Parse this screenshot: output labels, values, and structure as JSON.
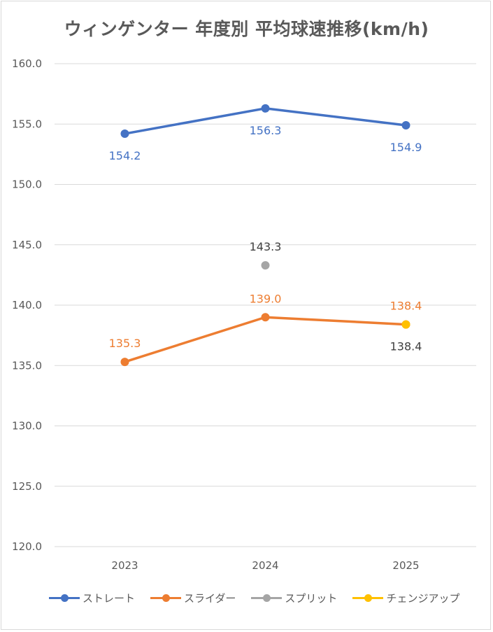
{
  "chart_data": {
    "type": "line",
    "title": "ウィンゲンター 年度別 平均球速推移(km/h)",
    "categories": [
      "2023",
      "2024",
      "2025"
    ],
    "ylim": [
      120,
      160
    ],
    "yticks": [
      "120.0",
      "125.0",
      "130.0",
      "135.0",
      "140.0",
      "145.0",
      "150.0",
      "155.0",
      "160.0"
    ],
    "ytick_values": [
      120,
      125,
      130,
      135,
      140,
      145,
      150,
      155,
      160
    ],
    "grid": true,
    "legend_position": "bottom",
    "series": [
      {
        "name": "ストレート",
        "color": "#4472C4",
        "values": [
          154.2,
          156.3,
          154.9
        ],
        "labels": [
          "154.2",
          "156.3",
          "154.9"
        ],
        "label_pos": "below"
      },
      {
        "name": "スライダー",
        "color": "#ED7D31",
        "values": [
          135.3,
          139.0,
          138.4
        ],
        "labels": [
          "135.3",
          "139.0",
          "138.4"
        ],
        "label_pos": "above"
      },
      {
        "name": "スプリット",
        "color": "#A5A5A5",
        "values": [
          null,
          143.3,
          null
        ],
        "labels": [
          null,
          "143.3",
          null
        ],
        "label_pos": "above",
        "label_color": "#404040"
      },
      {
        "name": "チェンジアップ",
        "color": "#FFC000",
        "values": [
          null,
          null,
          138.4
        ],
        "labels": [
          null,
          null,
          "138.4"
        ],
        "label_pos": "below",
        "label_color": "#404040"
      }
    ]
  }
}
